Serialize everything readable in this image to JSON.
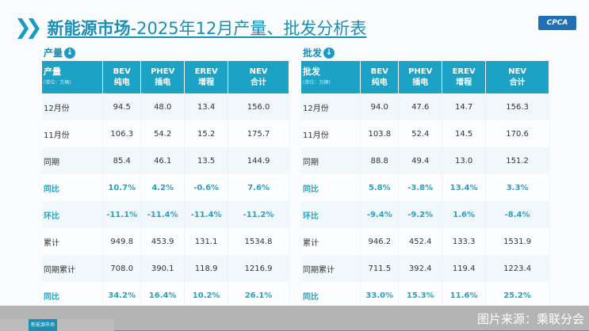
{
  "title": {
    "bold": "新能源市场",
    "rest": "-2025年12月产量、批发分析表"
  },
  "logo": "CPCA",
  "tables": [
    {
      "section": "产量",
      "header_label": "产量",
      "unit": "(单位：万辆)",
      "columns": [
        [
          "BEV",
          "纯电"
        ],
        [
          "PHEV",
          "插电"
        ],
        [
          "EREV",
          "增程"
        ],
        [
          "NEV",
          "合计"
        ]
      ],
      "rows": [
        {
          "label": "12月份",
          "values": [
            "94.5",
            "48.0",
            "13.4",
            "156.0"
          ]
        },
        {
          "label": "11月份",
          "values": [
            "106.3",
            "54.2",
            "15.2",
            "175.7"
          ]
        },
        {
          "label": "同期",
          "values": [
            "85.4",
            "46.1",
            "13.5",
            "144.9"
          ]
        },
        {
          "label": "同比",
          "values": [
            "10.7%",
            "4.2%",
            "-0.6%",
            "7.6%"
          ],
          "highlight": true
        },
        {
          "label": "环比",
          "values": [
            "-11.1%",
            "-11.4%",
            "-11.4%",
            "-11.2%"
          ],
          "highlight": true
        },
        {
          "label": "累计",
          "values": [
            "949.8",
            "453.9",
            "131.1",
            "1534.8"
          ]
        },
        {
          "label": "同期累计",
          "values": [
            "708.0",
            "390.1",
            "118.9",
            "1216.9"
          ]
        },
        {
          "label": "同比",
          "values": [
            "34.2%",
            "16.4%",
            "10.2%",
            "26.1%"
          ],
          "highlight": true
        }
      ]
    },
    {
      "section": "批发",
      "header_label": "批发",
      "unit": "(单位：万辆)",
      "columns": [
        [
          "BEV",
          "纯电"
        ],
        [
          "PHEV",
          "插电"
        ],
        [
          "EREV",
          "增程"
        ],
        [
          "NEV",
          "合计"
        ]
      ],
      "rows": [
        {
          "label": "12月份",
          "values": [
            "94.0",
            "47.6",
            "14.7",
            "156.3"
          ]
        },
        {
          "label": "11月份",
          "values": [
            "103.8",
            "52.4",
            "14.5",
            "170.6"
          ]
        },
        {
          "label": "同期",
          "values": [
            "88.8",
            "49.4",
            "13.0",
            "151.2"
          ]
        },
        {
          "label": "同比",
          "values": [
            "5.8%",
            "-3.8%",
            "13.4%",
            "3.3%"
          ],
          "highlight": true
        },
        {
          "label": "环比",
          "values": [
            "-9.4%",
            "-9.2%",
            "1.6%",
            "-8.4%"
          ],
          "highlight": true
        },
        {
          "label": "累计",
          "values": [
            "946.2",
            "452.4",
            "133.3",
            "1531.9"
          ]
        },
        {
          "label": "同期累计",
          "values": [
            "711.5",
            "392.4",
            "119.4",
            "1223.4"
          ]
        },
        {
          "label": "同比",
          "values": [
            "33.0%",
            "15.3%",
            "11.6%",
            "25.2%"
          ],
          "highlight": true
        }
      ]
    }
  ],
  "bottom_tabs": [
    "",
    "新能源市场",
    "",
    ""
  ],
  "credit": "图片来源：乘联分会",
  "colors": {
    "accent": "#1ba2c4",
    "title": "#1a8fb5"
  }
}
